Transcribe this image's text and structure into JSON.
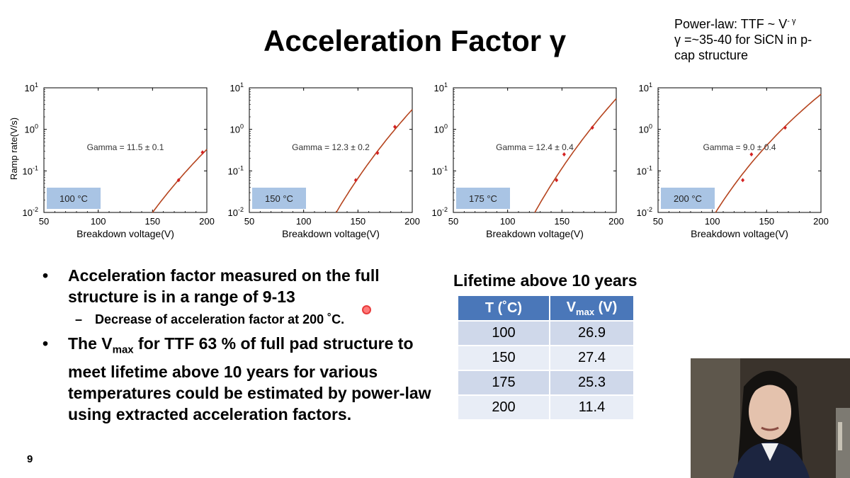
{
  "slide": {
    "title": "Acceleration Factor γ",
    "note_line1": "Power-law:  TTF ~ V",
    "note_line1_sup": "- γ",
    "note_line2": "γ =~35-40 for SiCN in p-",
    "note_line3": "cap structure",
    "page_number": "9"
  },
  "bullets": {
    "b1": "Acceleration factor measured on the full structure is in a range of 9-13",
    "b1_sub": "Decrease of acceleration factor at 200 ˚C.",
    "b2_pre": "The V",
    "b2_sub": "max",
    "b2_post": " for TTF 63 % of full pad structure to meet lifetime above 10 years for various temperatures could be estimated by power-law using extracted acceleration factors.",
    "bullet_symbol": "•",
    "dash_symbol": "–"
  },
  "lifetime_table": {
    "title": "Lifetime above 10 years",
    "col1": "T (˚C)",
    "col2_main": "V",
    "col2_sub": "max",
    "col2_unit": " (V)",
    "rows": [
      {
        "t": "100",
        "v": "26.9"
      },
      {
        "t": "150",
        "v": "27.4"
      },
      {
        "t": "175",
        "v": "25.3"
      },
      {
        "t": "200",
        "v": "11.4"
      }
    ]
  },
  "colors": {
    "curve": "#b5441e",
    "points": "#d42222",
    "temp_box": "#a9c4e4",
    "table_header": "#4a77b9"
  },
  "chart_data": [
    {
      "type": "line",
      "xlabel": "Breakdown voltage(V)",
      "ylabel": "Ramp rate(V/s)",
      "xlim": [
        50,
        200
      ],
      "ylim_log10": [
        -2,
        1
      ],
      "y_scale": "log",
      "x_ticks": [
        "50",
        "100",
        "150",
        "200"
      ],
      "y_ticks": [
        "10^-2",
        "10^-1",
        "10^0",
        "10^1"
      ],
      "annotation": "Gamma = 11.5 ± 0.1",
      "temp_label": "100 °C",
      "points": [
        {
          "x": 174,
          "y": 0.06
        },
        {
          "x": 196,
          "y": 0.28
        }
      ],
      "fit_curve": [
        {
          "x": 150,
          "y": 0.01
        },
        {
          "x": 200,
          "y": 0.33
        }
      ]
    },
    {
      "type": "line",
      "xlabel": "Breakdown voltage(V)",
      "ylabel": "",
      "xlim": [
        50,
        200
      ],
      "ylim_log10": [
        -2,
        1
      ],
      "y_scale": "log",
      "x_ticks": [
        "50",
        "100",
        "150",
        "200"
      ],
      "y_ticks": [
        "10^-2",
        "10^-1",
        "10^0",
        "10^1"
      ],
      "annotation": "Gamma = 12.3 ± 0.2",
      "temp_label": "150 °C",
      "points": [
        {
          "x": 148,
          "y": 0.06
        },
        {
          "x": 168,
          "y": 0.27
        },
        {
          "x": 184,
          "y": 1.15
        }
      ],
      "fit_curve": [
        {
          "x": 130,
          "y": 0.01
        },
        {
          "x": 200,
          "y": 3.0
        }
      ]
    },
    {
      "type": "line",
      "xlabel": "Breakdown voltage(V)",
      "ylabel": "",
      "xlim": [
        50,
        200
      ],
      "ylim_log10": [
        -2,
        1
      ],
      "y_scale": "log",
      "x_ticks": [
        "50",
        "100",
        "150",
        "200"
      ],
      "y_ticks": [
        "10^-2",
        "10^-1",
        "10^0",
        "10^1"
      ],
      "annotation": "Gamma = 12.4 ± 0.4",
      "temp_label": "175 °C",
      "points": [
        {
          "x": 145,
          "y": 0.06
        },
        {
          "x": 152,
          "y": 0.25
        },
        {
          "x": 178,
          "y": 1.1
        }
      ],
      "fit_curve": [
        {
          "x": 125,
          "y": 0.01
        },
        {
          "x": 200,
          "y": 5.5
        }
      ]
    },
    {
      "type": "line",
      "xlabel": "Breakdown voltage(V)",
      "ylabel": "",
      "xlim": [
        50,
        200
      ],
      "ylim_log10": [
        -2,
        1
      ],
      "y_scale": "log",
      "x_ticks": [
        "50",
        "100",
        "150",
        "200"
      ],
      "y_ticks": [
        "10^-2",
        "10^-1",
        "10^0",
        "10^1"
      ],
      "annotation": "Gamma = 9.0 ± 0.4",
      "temp_label": "200 °C",
      "points": [
        {
          "x": 128,
          "y": 0.06
        },
        {
          "x": 136,
          "y": 0.25
        },
        {
          "x": 167,
          "y": 1.1
        }
      ],
      "fit_curve": [
        {
          "x": 103,
          "y": 0.01
        },
        {
          "x": 200,
          "y": 7.0
        }
      ]
    }
  ]
}
